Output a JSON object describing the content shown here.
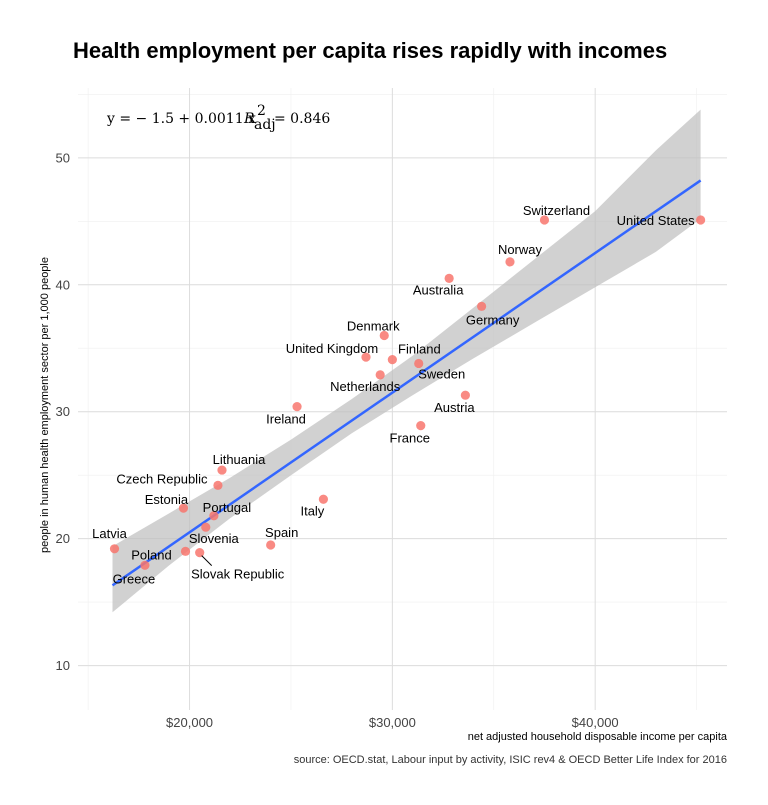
{
  "chart_data": {
    "type": "scatter",
    "title": "Health employment per capita rises rapidly with incomes",
    "xlabel": "net adjusted household disposable income per capita",
    "ylabel": "people in human health employment sector per 1,000 people",
    "caption": "source: OECD.stat, Labour input by activity, ISIC rev4 & OECD Better Life Index for 2016",
    "xlim": [
      14500,
      46500
    ],
    "ylim": [
      6.5,
      55.5
    ],
    "x_ticks": [
      20000,
      30000,
      40000
    ],
    "x_tick_labels": [
      "$20,000",
      "$30,000",
      "$40,000"
    ],
    "y_ticks": [
      10,
      20,
      30,
      40,
      50
    ],
    "y_tick_labels": [
      "10",
      "20",
      "30",
      "40",
      "50"
    ],
    "equation": {
      "prefix": "y = − 1.5 + 0.0011 x",
      "r_symbol": "R",
      "r_sup": "2",
      "r_sub": "adj",
      "r_value": "= 0.846"
    },
    "regression": {
      "intercept": -1.5,
      "slope": 0.0011,
      "x_range": [
        16200,
        45200
      ],
      "band": [
        {
          "x": 16200,
          "lo": 14.2,
          "hi": 19.4
        },
        {
          "x": 19000,
          "lo": 17.9,
          "hi": 22.0
        },
        {
          "x": 22000,
          "lo": 21.6,
          "hi": 24.8
        },
        {
          "x": 25000,
          "lo": 25.0,
          "hi": 27.8
        },
        {
          "x": 28000,
          "lo": 28.3,
          "hi": 31.0
        },
        {
          "x": 31000,
          "lo": 31.3,
          "hi": 34.4
        },
        {
          "x": 34000,
          "lo": 34.2,
          "hi": 38.2
        },
        {
          "x": 37000,
          "lo": 37.0,
          "hi": 42.0
        },
        {
          "x": 40000,
          "lo": 39.8,
          "hi": 45.8
        },
        {
          "x": 43000,
          "lo": 42.6,
          "hi": 50.6
        },
        {
          "x": 45200,
          "lo": 45.2,
          "hi": 53.8
        }
      ]
    },
    "points": [
      {
        "label": "United States",
        "x": 45200,
        "y": 45.1,
        "label_anchor": "end",
        "dx": -6,
        "dy": 5
      },
      {
        "label": "Switzerland",
        "x": 37500,
        "y": 45.1,
        "label_anchor": "middle",
        "dx": 12,
        "dy": -5
      },
      {
        "label": "Norway",
        "x": 35800,
        "y": 41.8,
        "label_anchor": "middle",
        "dx": 10,
        "dy": -8
      },
      {
        "label": "Australia",
        "x": 32800,
        "y": 40.5,
        "label_anchor": "middle",
        "dx": -11,
        "dy": 16
      },
      {
        "label": "Germany",
        "x": 34400,
        "y": 38.3,
        "label_anchor": "middle",
        "dx": 11,
        "dy": 18
      },
      {
        "label": "Denmark",
        "x": 29600,
        "y": 36.0,
        "label_anchor": "middle",
        "dx": -11,
        "dy": -5
      },
      {
        "label": "United Kingdom",
        "x": 28700,
        "y": 34.3,
        "label_anchor": "middle",
        "dx": -34,
        "dy": -4
      },
      {
        "label": "Finland",
        "x": 30000,
        "y": 34.1,
        "label_anchor": "middle",
        "dx": 27,
        "dy": -6
      },
      {
        "label": "Sweden",
        "x": 31300,
        "y": 33.8,
        "label_anchor": "middle",
        "dx": 23,
        "dy": 15
      },
      {
        "label": "Netherlands",
        "x": 29400,
        "y": 32.9,
        "label_anchor": "middle",
        "dx": -15,
        "dy": 16
      },
      {
        "label": "Austria",
        "x": 33600,
        "y": 31.3,
        "label_anchor": "middle",
        "dx": -11,
        "dy": 17
      },
      {
        "label": "Ireland",
        "x": 25300,
        "y": 30.4,
        "label_anchor": "middle",
        "dx": -11,
        "dy": 17
      },
      {
        "label": "France",
        "x": 31400,
        "y": 28.9,
        "label_anchor": "middle",
        "dx": -11,
        "dy": 17
      },
      {
        "label": "Lithuania",
        "x": 21600,
        "y": 25.4,
        "label_anchor": "middle",
        "dx": 17,
        "dy": -6
      },
      {
        "label": "Czech Republic",
        "x": 21400,
        "y": 24.2,
        "label_anchor": "middle",
        "dx": -56,
        "dy": -2
      },
      {
        "label": "Italy",
        "x": 26600,
        "y": 23.1,
        "label_anchor": "middle",
        "dx": -11,
        "dy": 16
      },
      {
        "label": "Estonia",
        "x": 19700,
        "y": 22.4,
        "label_anchor": "middle",
        "dx": -17,
        "dy": -4
      },
      {
        "label": "Portugal",
        "x": 21200,
        "y": 21.8,
        "label_anchor": "middle",
        "dx": 13,
        "dy": -4
      },
      {
        "label": "Slovenia",
        "x": 20800,
        "y": 20.9,
        "label_anchor": "middle",
        "dx": 8,
        "dy": 16
      },
      {
        "label": "Latvia",
        "x": 16300,
        "y": 19.2,
        "label_anchor": "middle",
        "dx": -5,
        "dy": -11
      },
      {
        "label": "Spain",
        "x": 24000,
        "y": 19.5,
        "label_anchor": "middle",
        "dx": 11,
        "dy": -8
      },
      {
        "label": "Poland",
        "x": 19800,
        "y": 19.0,
        "label_anchor": "middle",
        "dx": -34,
        "dy": 8
      },
      {
        "label": "Slovak Republic",
        "x": 20500,
        "y": 18.9,
        "label_anchor": "middle",
        "dx": 38,
        "dy": 26
      },
      {
        "label": "Greece",
        "x": 17800,
        "y": 17.9,
        "label_anchor": "middle",
        "dx": -11,
        "dy": 18
      }
    ],
    "colors": {
      "point": "#f8766d",
      "line": "#3366ff",
      "band": "#bfbfbf"
    }
  }
}
